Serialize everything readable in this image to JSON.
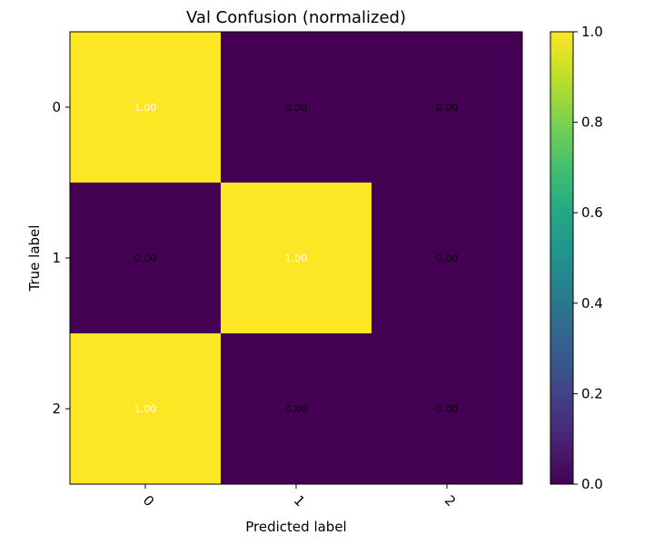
{
  "chart_data": {
    "type": "heatmap",
    "title": "Val Confusion (normalized)",
    "xlabel": "Predicted label",
    "ylabel": "True label",
    "x_categories": [
      "0",
      "1",
      "2"
    ],
    "y_categories": [
      "0",
      "1",
      "2"
    ],
    "values": [
      [
        1.0,
        0.0,
        0.0
      ],
      [
        0.0,
        1.0,
        0.0
      ],
      [
        1.0,
        0.0,
        0.0
      ]
    ],
    "cell_labels": [
      [
        "1.00",
        "0.00",
        "0.00"
      ],
      [
        "0.00",
        "1.00",
        "0.00"
      ],
      [
        "1.00",
        "0.00",
        "0.00"
      ]
    ],
    "colorbar": {
      "range": [
        0.0,
        1.0
      ],
      "ticks": [
        "0.0",
        "0.2",
        "0.4",
        "0.6",
        "0.8",
        "1.0"
      ],
      "colormap": "viridis"
    },
    "colors": {
      "low": "#440154",
      "high": "#fde725"
    },
    "grid": false
  }
}
